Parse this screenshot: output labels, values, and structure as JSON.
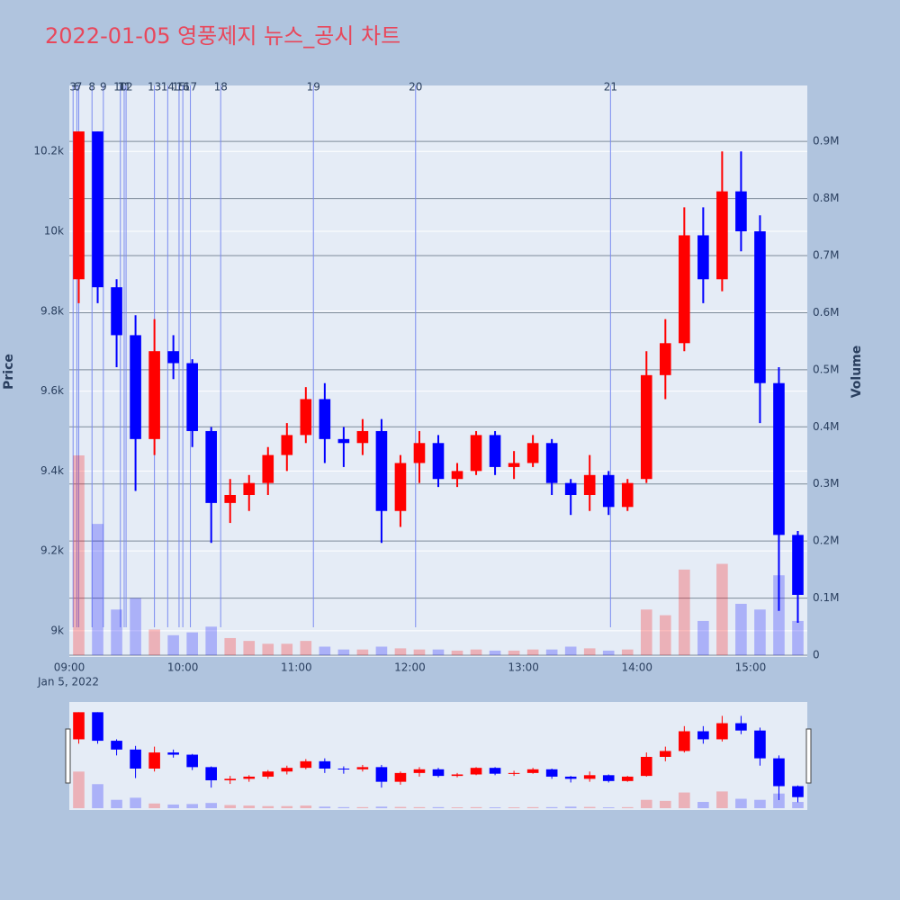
{
  "chart_data": {
    "type": "candlestick",
    "title": "2022-01-05 영풍제지 뉴스_공시 차트",
    "y_title": "Price",
    "y2_title": "Volume",
    "x_date_label": "Jan 5, 2022",
    "increasing_color": "#ff0000",
    "decreasing_color": "#0000ff",
    "x": [
      "09:00",
      "09:10",
      "09:20",
      "09:30",
      "09:40",
      "09:50",
      "10:00",
      "10:10",
      "10:20",
      "10:30",
      "10:40",
      "10:50",
      "11:00",
      "11:10",
      "11:20",
      "11:30",
      "11:40",
      "11:50",
      "12:00",
      "12:10",
      "12:20",
      "12:30",
      "12:40",
      "12:50",
      "13:00",
      "13:10",
      "13:20",
      "13:30",
      "13:40",
      "13:50",
      "14:00",
      "14:10",
      "14:20",
      "14:30",
      "14:40",
      "14:50",
      "15:00",
      "15:10",
      "15:20"
    ],
    "open": [
      9880,
      10250,
      9860,
      9740,
      9480,
      9700,
      9670,
      9500,
      9320,
      9340,
      9370,
      9440,
      9490,
      9580,
      9480,
      9470,
      9500,
      9300,
      9420,
      9470,
      9380,
      9400,
      9490,
      9410,
      9420,
      9470,
      9370,
      9340,
      9390,
      9310,
      9380,
      9640,
      9720,
      9990,
      9880,
      10100,
      10000,
      9620,
      9240
    ],
    "high": [
      10250,
      10250,
      9880,
      9790,
      9780,
      9740,
      9680,
      9510,
      9380,
      9390,
      9460,
      9520,
      9610,
      9620,
      9510,
      9530,
      9530,
      9440,
      9500,
      9490,
      9420,
      9500,
      9500,
      9450,
      9490,
      9480,
      9380,
      9440,
      9400,
      9380,
      9700,
      9780,
      10060,
      10060,
      10200,
      10200,
      10040,
      9660,
      9250
    ],
    "low": [
      9820,
      9820,
      9660,
      9350,
      9440,
      9630,
      9460,
      9220,
      9270,
      9300,
      9340,
      9400,
      9470,
      9420,
      9410,
      9440,
      9220,
      9260,
      9370,
      9360,
      9360,
      9390,
      9390,
      9380,
      9410,
      9340,
      9290,
      9300,
      9290,
      9300,
      9370,
      9580,
      9700,
      9820,
      9850,
      9950,
      9520,
      9050,
      9020
    ],
    "close": [
      10250,
      9860,
      9740,
      9480,
      9700,
      9670,
      9500,
      9320,
      9340,
      9370,
      9440,
      9490,
      9580,
      9480,
      9470,
      9500,
      9300,
      9420,
      9470,
      9380,
      9400,
      9490,
      9410,
      9420,
      9470,
      9370,
      9340,
      9390,
      9310,
      9370,
      9640,
      9720,
      9990,
      9880,
      10100,
      10000,
      9620,
      9240,
      9090
    ],
    "volume": [
      350000,
      230000,
      80000,
      100000,
      45000,
      35000,
      40000,
      50000,
      30000,
      25000,
      20000,
      20000,
      25000,
      15000,
      10000,
      10000,
      15000,
      12000,
      10000,
      10000,
      8000,
      10000,
      8000,
      8000,
      10000,
      10000,
      15000,
      12000,
      8000,
      10000,
      80000,
      70000,
      150000,
      60000,
      160000,
      90000,
      80000,
      140000,
      60000
    ],
    "xlim": [
      "09:00",
      "15:30"
    ],
    "xticks": [
      "09:00",
      "10:00",
      "11:00",
      "12:00",
      "13:00",
      "14:00",
      "15:00"
    ],
    "ylim": [
      8939,
      10365
    ],
    "yticks": [
      {
        "value": 9000,
        "label": "9k"
      },
      {
        "value": 9200,
        "label": "9.2k"
      },
      {
        "value": 9400,
        "label": "9.4k"
      },
      {
        "value": 9600,
        "label": "9.6k"
      },
      {
        "value": 9800,
        "label": "9.8k"
      },
      {
        "value": 10000,
        "label": "10k"
      },
      {
        "value": 10200,
        "label": "10.2k"
      }
    ],
    "y2lim": [
      0,
      998000
    ],
    "y2ticks": [
      0,
      {
        "value": 100000,
        "label": "0.1M"
      },
      {
        "value": 200000,
        "label": "0.2M"
      },
      {
        "value": 300000,
        "label": "0.3M"
      },
      {
        "value": 400000,
        "label": "0.4M"
      },
      {
        "value": 500000,
        "label": "0.5M"
      },
      {
        "value": 600000,
        "label": "0.6M"
      },
      {
        "value": 700000,
        "label": "0.7M"
      },
      {
        "value": 800000,
        "label": "0.8M"
      },
      {
        "value": 900000,
        "label": "0.9M"
      }
    ],
    "news": [
      {
        "x": "09:02",
        "label": "3"
      },
      {
        "x": "09:04",
        "label": "6"
      },
      {
        "x": "09:05",
        "label": "7"
      },
      {
        "x": "09:12",
        "label": "8"
      },
      {
        "x": "09:18",
        "label": "9"
      },
      {
        "x": "09:27",
        "label": "10"
      },
      {
        "x": "09:29",
        "label": "11"
      },
      {
        "x": "09:30",
        "label": "12"
      },
      {
        "x": "09:45",
        "label": "13"
      },
      {
        "x": "09:52",
        "label": "14"
      },
      {
        "x": "09:58",
        "label": "15"
      },
      {
        "x": "10:00",
        "label": "16"
      },
      {
        "x": "10:04",
        "label": "17"
      },
      {
        "x": "10:20",
        "label": "18"
      },
      {
        "x": "11:09",
        "label": "19"
      },
      {
        "x": "12:03",
        "label": "20"
      },
      {
        "x": "13:46",
        "label": "21"
      }
    ]
  }
}
